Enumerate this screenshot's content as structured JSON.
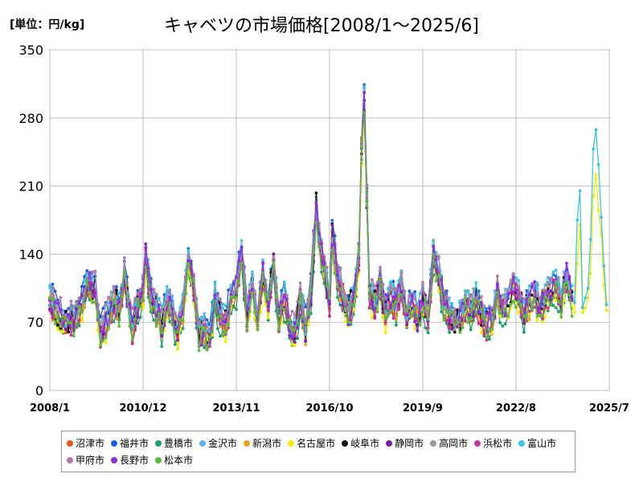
{
  "header": {
    "unit": "[単位：円/kg]",
    "title": "キャベツの市場価格[2008/1～2025/6]"
  },
  "chart_data": {
    "type": "line",
    "title": "キャベツの市場価格[2008/1～2025/6]",
    "unit_label": "[単位：円/kg]",
    "xlabel": "",
    "ylabel": "",
    "ylim": [
      0,
      350
    ],
    "yticks": [
      0,
      70,
      140,
      210,
      280,
      350
    ],
    "x_start": "2008-01",
    "x_end": "2025-07",
    "xtick_labels": [
      "2008/1",
      "2010/12",
      "2013/11",
      "2016/10",
      "2019/9",
      "2022/8",
      "2025/7"
    ],
    "grid": true,
    "legend_position": "bottom",
    "reference": {
      "x": [
        "2008-01",
        "2008-04",
        "2008-07",
        "2008-10",
        "2009-01",
        "2009-03",
        "2009-06",
        "2009-08",
        "2009-10",
        "2010-01",
        "2010-03",
        "2010-05",
        "2010-06",
        "2010-08",
        "2010-10",
        "2010-12",
        "2011-01",
        "2011-03",
        "2011-05",
        "2011-07",
        "2011-09",
        "2011-11",
        "2012-01",
        "2012-03",
        "2012-05",
        "2012-07",
        "2012-09",
        "2012-11",
        "2013-01",
        "2013-03",
        "2013-05",
        "2013-07",
        "2013-09",
        "2013-11",
        "2014-01",
        "2014-03",
        "2014-05",
        "2014-07",
        "2014-09",
        "2014-11",
        "2015-01",
        "2015-03",
        "2015-05",
        "2015-07",
        "2015-09",
        "2015-11",
        "2016-01",
        "2016-03",
        "2016-05",
        "2016-07",
        "2016-09",
        "2016-10",
        "2016-11",
        "2017-01",
        "2017-03",
        "2017-05",
        "2017-07",
        "2017-09",
        "2017-10",
        "2017-11",
        "2018-01",
        "2018-03",
        "2018-05",
        "2018-07",
        "2018-09",
        "2018-11",
        "2019-01",
        "2019-03",
        "2019-05",
        "2019-07",
        "2019-09",
        "2019-11",
        "2020-01",
        "2020-03",
        "2020-05",
        "2020-07",
        "2020-09",
        "2020-11",
        "2021-01",
        "2021-03",
        "2021-05",
        "2021-07",
        "2021-09",
        "2021-11",
        "2022-01",
        "2022-03",
        "2022-05",
        "2022-07",
        "2022-09",
        "2022-11",
        "2023-01",
        "2023-03",
        "2023-05",
        "2023-07",
        "2023-09",
        "2023-11",
        "2024-01",
        "2024-03",
        "2024-05"
      ],
      "y": [
        95,
        80,
        70,
        75,
        90,
        110,
        105,
        60,
        70,
        95,
        85,
        120,
        100,
        65,
        90,
        105,
        140,
        95,
        85,
        70,
        90,
        80,
        60,
        85,
        140,
        110,
        55,
        65,
        50,
        95,
        80,
        70,
        95,
        105,
        140,
        80,
        110,
        70,
        120,
        90,
        130,
        75,
        95,
        70,
        60,
        95,
        65,
        100,
        190,
        140,
        110,
        90,
        160,
        120,
        100,
        80,
        100,
        140,
        250,
        300,
        100,
        90,
        110,
        80,
        95,
        90,
        105,
        80,
        90,
        75,
        95,
        80,
        140,
        120,
        90,
        80,
        70,
        75,
        90,
        85,
        95,
        80,
        70,
        75,
        100,
        85,
        95,
        110,
        100,
        80,
        90,
        100,
        85,
        95,
        105,
        110,
        95,
        120,
        95
      ]
    },
    "series": [
      {
        "name": "沼津市",
        "color": "#E8551C",
        "offset": -3,
        "seed": 11
      },
      {
        "name": "福井市",
        "color": "#1A5FE0",
        "offset": 8,
        "seed": 23
      },
      {
        "name": "豊橋市",
        "color": "#1E9E6B",
        "offset": -12,
        "seed": 37
      },
      {
        "name": "金沢市",
        "color": "#5BB5F0",
        "offset": 4,
        "seed": 41
      },
      {
        "name": "新潟市",
        "color": "#E8A21C",
        "offset": -5,
        "seed": 53
      },
      {
        "name": "名古屋市",
        "color": "#F5EB00",
        "offset": -8,
        "seed": 67
      },
      {
        "name": "岐阜市",
        "color": "#111111",
        "offset": 0,
        "seed": 71
      },
      {
        "name": "静岡市",
        "color": "#7A1FA3",
        "offset": -2,
        "seed": 83
      },
      {
        "name": "高岡市",
        "color": "#9A9A9A",
        "offset": 2,
        "seed": 97
      },
      {
        "name": "浜松市",
        "color": "#C8329B",
        "offset": -6,
        "seed": 101
      },
      {
        "name": "富山市",
        "color": "#3CC3E0",
        "offset": 5,
        "seed": 113
      },
      {
        "name": "甲府市",
        "color": "#B07AA8",
        "offset": 6,
        "seed": 127
      },
      {
        "name": "長野市",
        "color": "#8B2BE2",
        "offset": -1,
        "seed": 131
      },
      {
        "name": "松本市",
        "color": "#5DBB3A",
        "offset": -7,
        "seed": 139
      }
    ],
    "extension_2024_2025": {
      "x": [
        "2024-06",
        "2024-07",
        "2024-08",
        "2024-09",
        "2024-10",
        "2024-11",
        "2024-12",
        "2025-01",
        "2025-02",
        "2025-03",
        "2025-04",
        "2025-05",
        "2025-06"
      ],
      "富山市": [
        90,
        175,
        205,
        85,
        95,
        105,
        155,
        248,
        268,
        232,
        178,
        128,
        88
      ],
      "名古屋市": [
        80,
        130,
        170,
        80,
        85,
        95,
        120,
        200,
        222,
        185,
        160,
        108,
        82
      ]
    }
  }
}
